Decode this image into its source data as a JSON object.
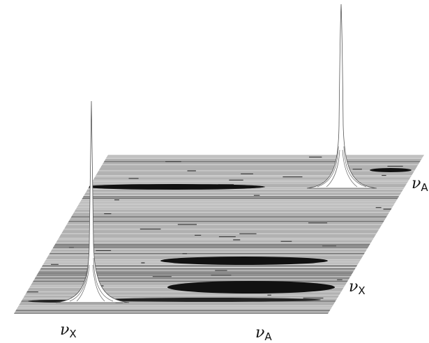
{
  "axes": {
    "f2": {
      "labels": [
        {
          "symbol": "ν",
          "subscript": "X"
        },
        {
          "symbol": "ν",
          "subscript": "A"
        }
      ]
    },
    "f1": {
      "labels": [
        {
          "symbol": "ν",
          "subscript": "X"
        },
        {
          "symbol": "ν",
          "subscript": "A"
        }
      ]
    }
  }
}
